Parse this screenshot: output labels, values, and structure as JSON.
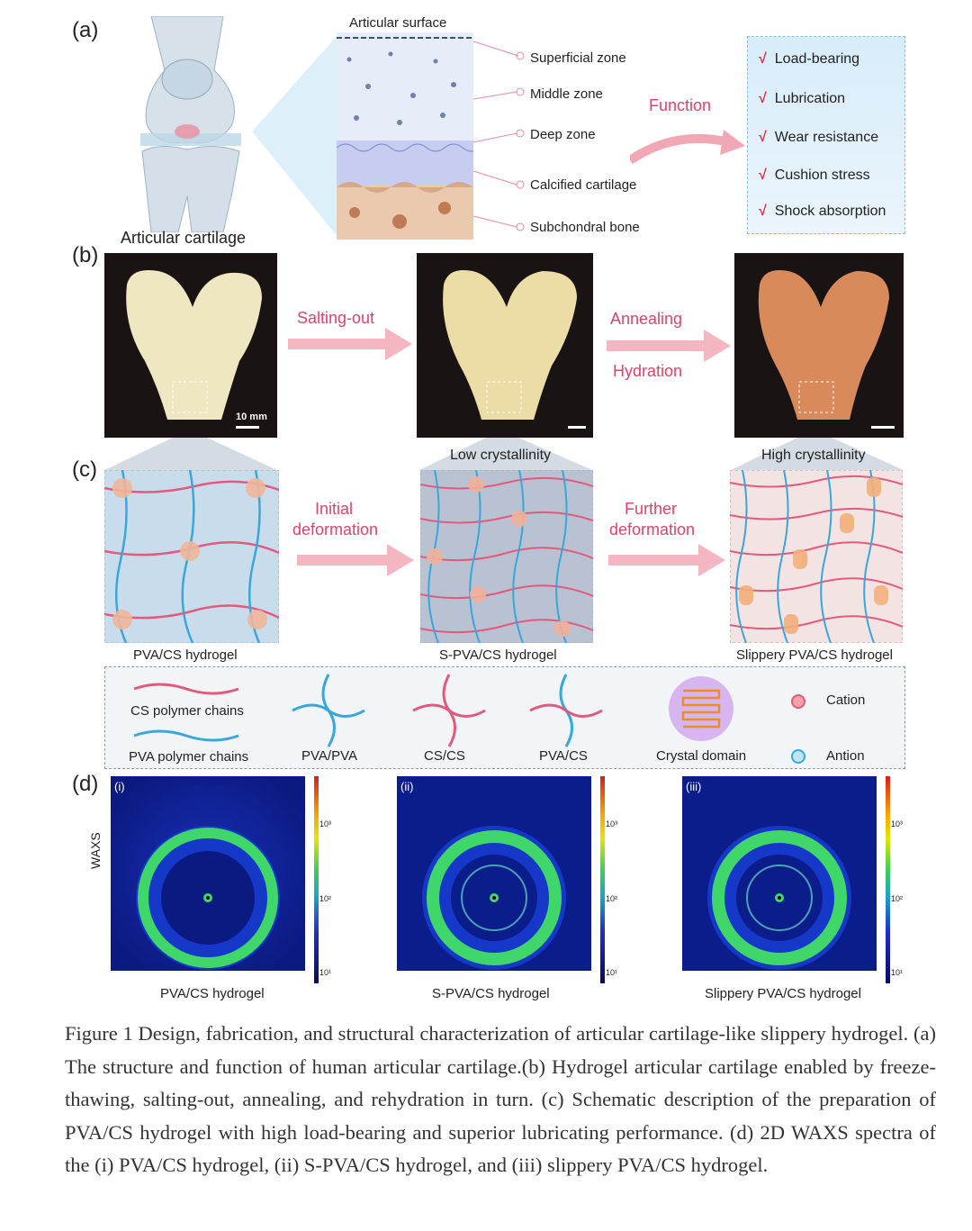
{
  "panel_labels": {
    "a": "(a)",
    "b": "(b)",
    "c": "(c)",
    "d": "(d)"
  },
  "panel_a": {
    "knee_label": "Articular cartilage",
    "surface_label": "Articular surface",
    "zones": [
      "Superficial zone",
      "Middle zone",
      "Deep zone",
      "Calcified cartilage",
      "Subchondral bone"
    ],
    "function_label": "Function",
    "functions": [
      "Load-bearing",
      "Lubrication",
      "Wear resistance",
      "Cushion stress",
      "Shock absorption"
    ],
    "check_mark": "√"
  },
  "panel_b": {
    "scale_label": "10 mm",
    "step1": "Salting-out",
    "step2a": "Annealing",
    "step2b": "Hydration"
  },
  "panel_c": {
    "mid_title": "Low crystallinity",
    "right_title": "High crystallinity",
    "arrow1_line1": "Initial",
    "arrow1_line2": "deformation",
    "arrow2_line1": "Further",
    "arrow2_line2": "deformation",
    "captions": [
      "PVA/CS  hydrogel",
      "S-PVA/CS  hydrogel",
      "Slippery PVA/CS  hydrogel"
    ]
  },
  "legend": {
    "cs_chains": "CS polymer chains",
    "pva_chains": "PVA polymer chains",
    "pva_pva": "PVA/PVA",
    "cs_cs": "CS/CS",
    "pva_cs": "PVA/CS",
    "crystal": "Crystal domain",
    "cation": "Cation",
    "anion": "Antion"
  },
  "panel_d": {
    "ylabel": "WAXS",
    "subpanels": [
      "(i)",
      "(ii)",
      "(iii)"
    ],
    "captions": [
      "PVA/CS  hydrogel",
      "S-PVA/CS  hydrogel",
      "Slippery PVA/CS  hydrogel"
    ],
    "colorbar_ticks": [
      "10³",
      "10²",
      "10¹"
    ]
  },
  "caption": "Figure 1 Design, fabrication, and structural characterization of articular cartilage-like slippery hydrogel. (a) The structure and function of human articular cartilage.(b) Hydrogel articular cartilage enabled by freeze-thawing, salting-out, annealing, and rehydration in turn. (c) Schematic description of the preparation of PVA/CS hydrogel with high load-bearing and superior lubricating performance. (d) 2D WAXS spectra of the (i) PVA/CS hydrogel, (ii) S-PVA/CS hydrogel, and (iii) slippery PVA/CS hydrogel.",
  "colors": {
    "pink": "#d9456a",
    "blue": "#3aa7d8",
    "waxs_bg": "#0b1d8a",
    "ring": "#3fd66a"
  }
}
